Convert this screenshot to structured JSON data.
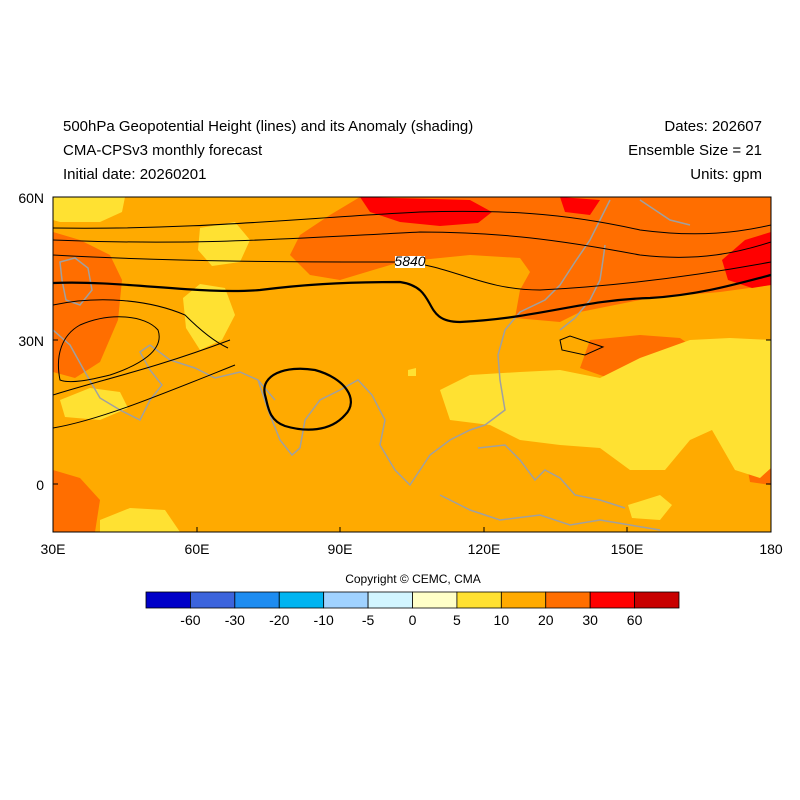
{
  "header": {
    "title": "500hPa Geopotential Height (lines) and its Anomaly (shading)",
    "model": "CMA-CPSv3 monthly forecast",
    "initial_date": "Initial date: 20260201",
    "dates": "Dates: 202607",
    "ensemble": "Ensemble Size = 21",
    "units": "Units: gpm"
  },
  "map": {
    "lon_range": [
      30,
      180
    ],
    "lat_range": [
      -10,
      60
    ],
    "lat_ticks": [
      "60N",
      "30N",
      "0"
    ],
    "lon_ticks": [
      "30E",
      "60E",
      "90E",
      "120E",
      "150E",
      "180"
    ],
    "contour_label": "5840"
  },
  "colorbar": {
    "colors": [
      "#0000c8",
      "#3c64dc",
      "#1e8cf0",
      "#00b4f0",
      "#a0d2ff",
      "#d2f5ff",
      "#ffffc8",
      "#ffe132",
      "#ffaa00",
      "#ff6e00",
      "#ff0000",
      "#c80000"
    ],
    "labels": [
      "-60",
      "-30",
      "-20",
      "-10",
      "-5",
      "0",
      "5",
      "10",
      "20",
      "30",
      "60"
    ]
  },
  "footer": {
    "copyright": "Copyright © CEMC, CMA"
  },
  "colors": {
    "coast": "#a0a0a0",
    "contour": "#000000"
  }
}
